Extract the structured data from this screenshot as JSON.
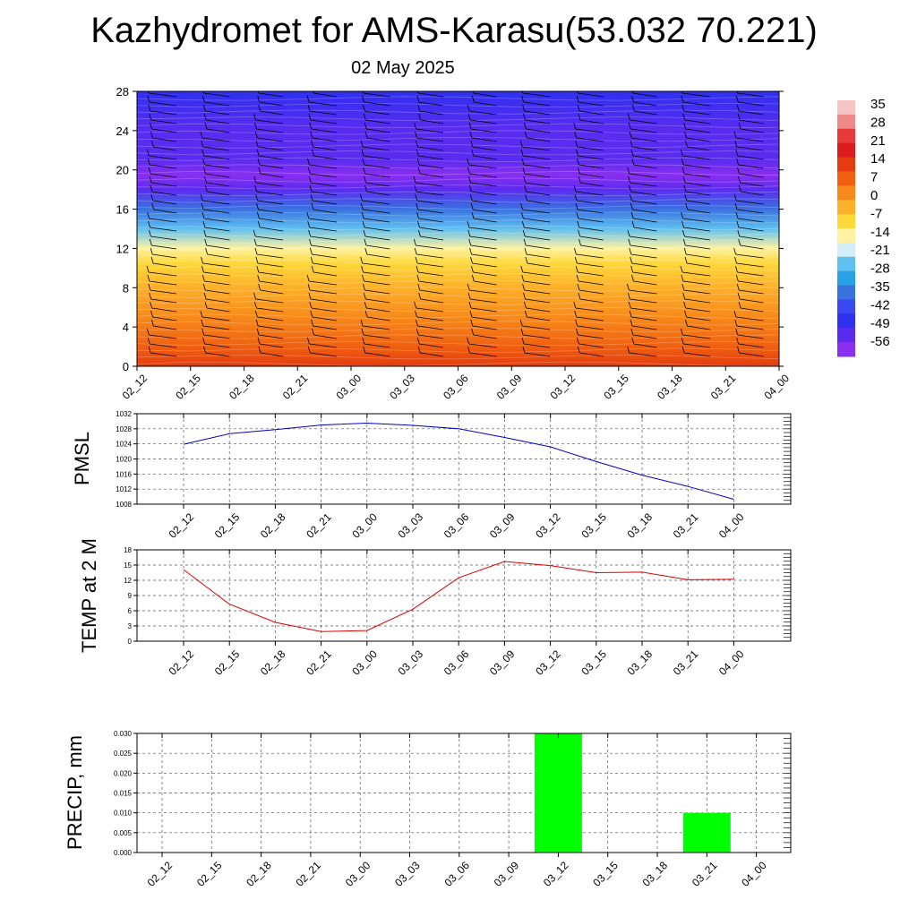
{
  "header": {
    "title": "Kazhydromet for AMS-Karasu(53.032 70.221)",
    "date": "02 May 2025"
  },
  "colors": {
    "pmsl_line": "#0000cc",
    "temp_line": "#e00000",
    "precip_bar": "#00ff00",
    "barb": "#000000"
  },
  "chart_data": [
    {
      "type": "heatmap",
      "title": "",
      "xlabel": "",
      "ylabel": "",
      "x": [
        "02_12",
        "02_15",
        "02_18",
        "02_21",
        "03_00",
        "03_03",
        "03_06",
        "03_09",
        "03_12",
        "03_15",
        "03_18",
        "03_21",
        "04_00"
      ],
      "y_ticks": [
        0,
        4,
        8,
        12,
        16,
        20,
        24,
        28
      ],
      "ylim": [
        0,
        28
      ],
      "colorbar_labels": [
        "35",
        "28",
        "21",
        "14",
        "7",
        "0",
        "-7",
        "-14",
        "-21",
        "-28",
        "-35",
        "-42",
        "-49",
        "-56"
      ],
      "colorbar_colors": [
        "#f7c4c4",
        "#ef8a8a",
        "#e83a3a",
        "#dc1c1c",
        "#e43c10",
        "#f06010",
        "#f88a1a",
        "#fdb02a",
        "#fdd83a",
        "#fff2a0",
        "#d4eef8",
        "#60c0f0",
        "#28a2e6",
        "#3a72e0",
        "#3a48f0",
        "#3030f0",
        "#5a2cf0",
        "#8a2ef0"
      ],
      "temperature_profile": [
        {
          "height": 0,
          "temp": 14
        },
        {
          "height": 2,
          "temp": 10
        },
        {
          "height": 5,
          "temp": 5
        },
        {
          "height": 8,
          "temp": 0
        },
        {
          "height": 10.5,
          "temp": -6
        },
        {
          "height": 12,
          "temp": -16
        },
        {
          "height": 14,
          "temp": -24
        },
        {
          "height": 16,
          "temp": -38
        },
        {
          "height": 18,
          "temp": -52
        },
        {
          "height": 19.5,
          "temp": -58
        },
        {
          "height": 21,
          "temp": -56
        },
        {
          "height": 24,
          "temp": -52
        },
        {
          "height": 28,
          "temp": -50
        }
      ],
      "grid": false,
      "wind_barbs": true
    },
    {
      "type": "line",
      "title": "",
      "xlabel": "",
      "ylabel": "PMSL",
      "categories": [
        "02_12",
        "02_15",
        "02_18",
        "02_21",
        "03_00",
        "03_03",
        "03_06",
        "03_09",
        "03_12",
        "03_15",
        "03_18",
        "03_21",
        "04_00"
      ],
      "y_ticks": [
        1008,
        1012,
        1016,
        1020,
        1024,
        1028,
        1032
      ],
      "ylim": [
        1008,
        1032
      ],
      "values": [
        1023.9,
        1026.7,
        1027.8,
        1029.0,
        1029.5,
        1028.9,
        1028.0,
        1025.7,
        1023.2,
        1019.3,
        1015.7,
        1012.7,
        1009.3
      ],
      "grid": true
    },
    {
      "type": "line",
      "title": "",
      "xlabel": "",
      "ylabel": "TEMP at 2 M",
      "categories": [
        "02_12",
        "02_15",
        "02_18",
        "02_21",
        "03_00",
        "03_03",
        "03_06",
        "03_09",
        "03_12",
        "03_15",
        "03_18",
        "03_21",
        "04_00"
      ],
      "y_ticks": [
        0,
        3,
        6,
        9,
        12,
        15,
        18
      ],
      "ylim": [
        0,
        18
      ],
      "values": [
        14.1,
        7.3,
        3.7,
        1.9,
        2.1,
        6.3,
        12.5,
        15.7,
        14.9,
        13.5,
        13.6,
        12.1,
        12.2
      ],
      "grid": true
    },
    {
      "type": "bar",
      "title": "",
      "xlabel": "",
      "ylabel": "PRECIP, mm",
      "categories": [
        "02_12",
        "02_15",
        "02_18",
        "02_21",
        "03_00",
        "03_03",
        "03_06",
        "03_09",
        "03_12",
        "03_15",
        "03_18",
        "03_21",
        "04_00"
      ],
      "y_ticks": [
        "0.000",
        "0.005",
        "0.010",
        "0.015",
        "0.020",
        "0.025",
        "0.030"
      ],
      "ylim": [
        0,
        0.03
      ],
      "values": [
        0,
        0,
        0,
        0,
        0,
        0,
        0,
        0,
        0.03,
        0,
        0,
        0.01,
        0
      ],
      "grid": true
    }
  ]
}
